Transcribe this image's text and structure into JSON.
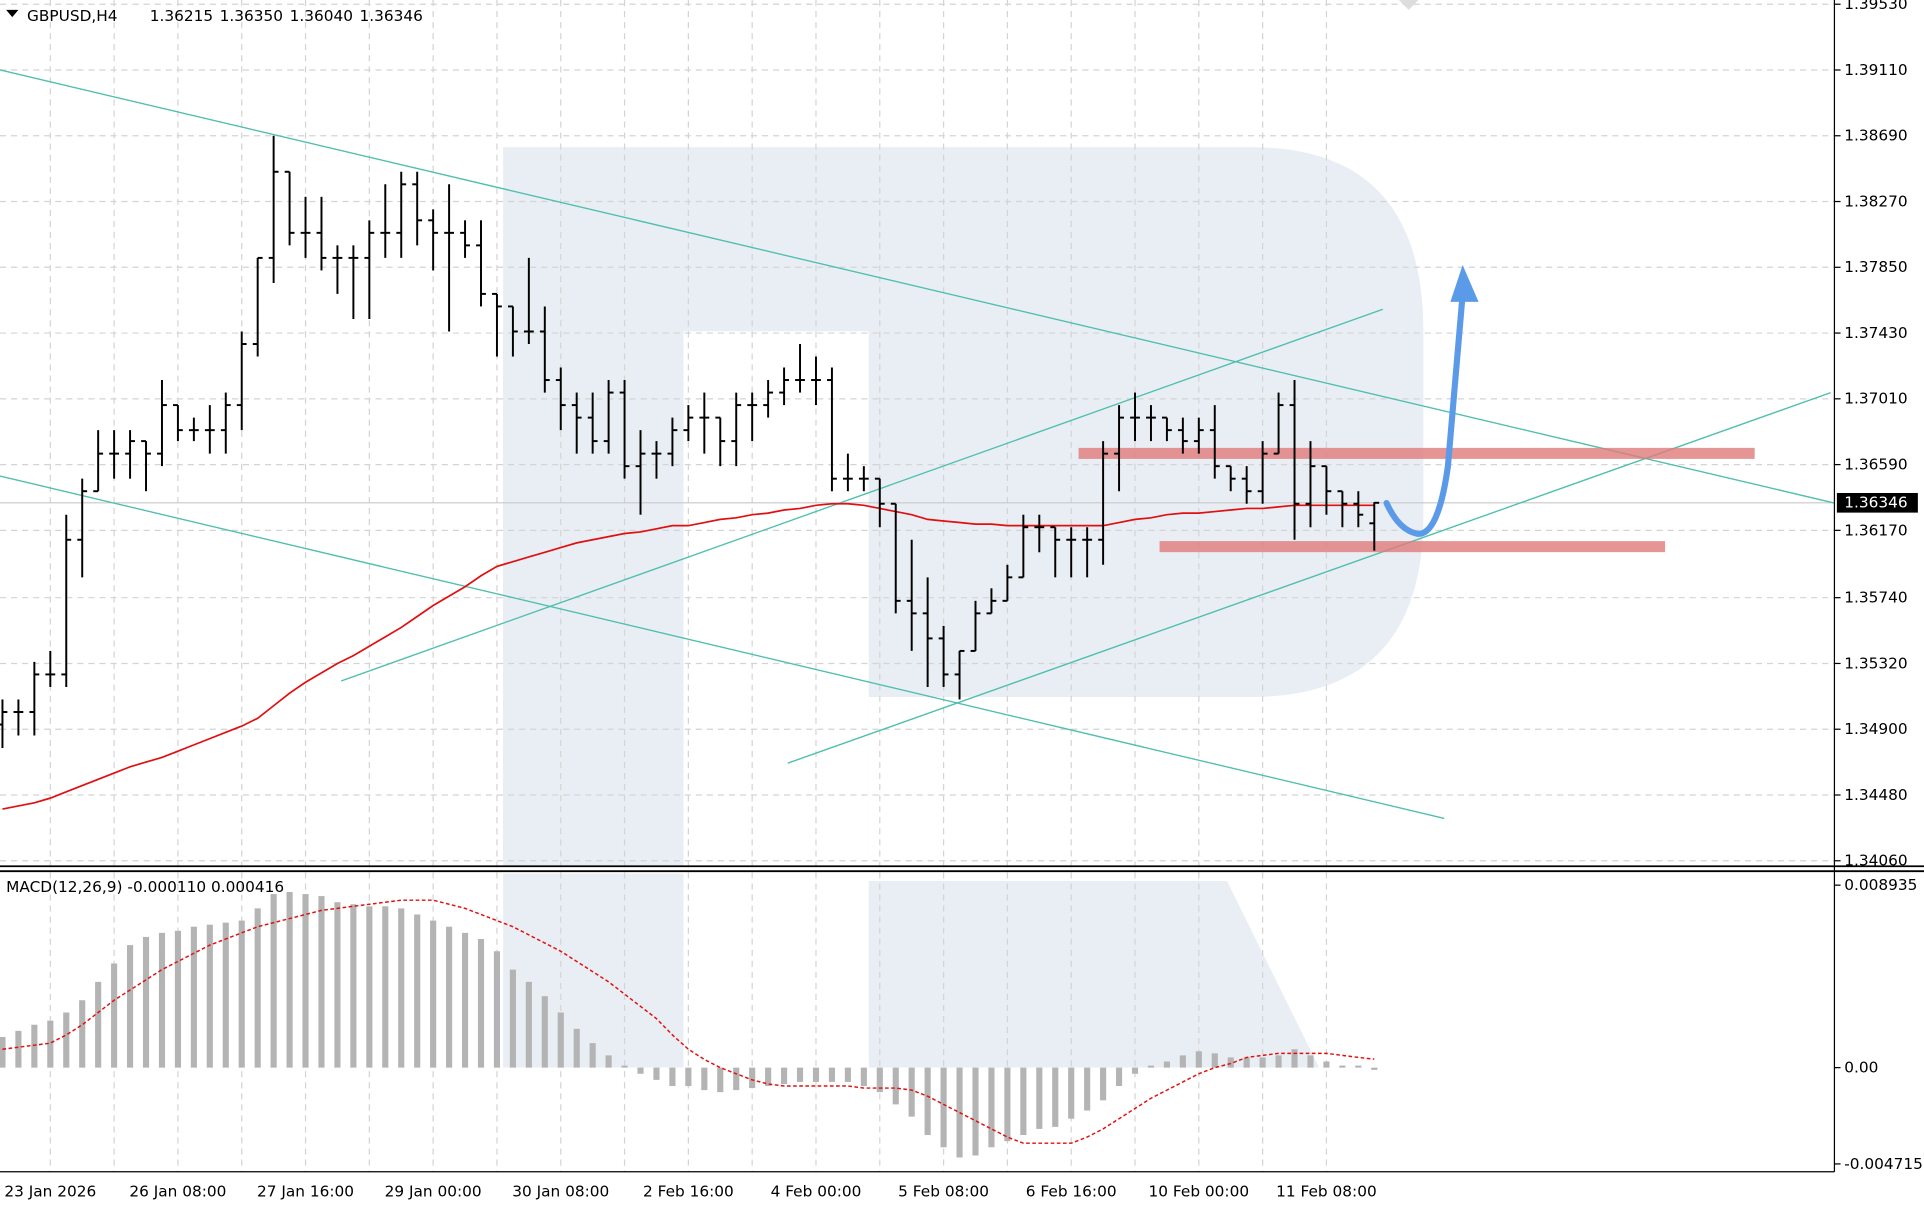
{
  "chart_data": [
    {
      "type": "ohlc",
      "header": {
        "symbol": "GBPUSD,H4",
        "ohlc": [
          "1.36215",
          "1.36350",
          "1.36040",
          "1.36346"
        ]
      },
      "categories": [
        null,
        null,
        null,
        "23 Jan 2026",
        null,
        null,
        null,
        null,
        null,
        null,
        null,
        "26 Jan 08:00",
        null,
        null,
        null,
        null,
        null,
        null,
        null,
        "27 Jan 16:00",
        null,
        null,
        null,
        null,
        null,
        null,
        null,
        "29 Jan 00:00",
        null,
        null,
        null,
        null,
        null,
        null,
        null,
        "30 Jan 08:00",
        null,
        null,
        null,
        null,
        null,
        null,
        null,
        "2 Feb 16:00",
        null,
        null,
        null,
        null,
        null,
        null,
        null,
        "4 Feb 00:00",
        null,
        null,
        null,
        null,
        null,
        null,
        null,
        "5 Feb 08:00",
        null,
        null,
        null,
        null,
        null,
        null,
        null,
        "6 Feb 16:00",
        null,
        null,
        null,
        null,
        null,
        null,
        null,
        "10 Feb 00:00",
        null,
        null,
        null,
        null,
        null,
        null,
        null,
        "11 Feb 08:00",
        null,
        null,
        null
      ],
      "open": [
        1.3493,
        1.3501,
        1.3501,
        1.3525,
        1.3525,
        1.3611,
        1.3642,
        1.3666,
        1.3666,
        1.3674,
        1.3666,
        1.3697,
        1.3681,
        1.3681,
        1.3681,
        1.3697,
        1.3736,
        1.3791,
        1.3846,
        1.3807,
        1.3807,
        1.3791,
        1.3791,
        1.3791,
        1.3807,
        1.3807,
        1.3838,
        1.3815,
        1.3807,
        1.3807,
        1.3799,
        1.3768,
        1.376,
        1.3744,
        1.3744,
        1.3713,
        1.3697,
        1.3689,
        1.3674,
        1.3705,
        1.3658,
        1.3666,
        1.3666,
        1.3681,
        1.3689,
        1.3689,
        1.3674,
        1.3697,
        1.3697,
        1.3705,
        1.3713,
        1.3713,
        1.3713,
        1.365,
        1.365,
        1.365,
        1.3634,
        1.3572,
        1.3564,
        1.3548,
        1.3525,
        1.354,
        1.3564,
        1.3572,
        1.3587,
        1.3619,
        1.3619,
        1.3611,
        1.3611,
        1.3611,
        1.3666,
        1.3689,
        1.3689,
        1.3689,
        1.3681,
        1.3674,
        1.3681,
        1.3658,
        1.365,
        1.3642,
        1.3666,
        1.3697,
        1.3634,
        1.3658,
        1.3642,
        1.3634,
        1.36215
      ],
      "high": [
        1.3509,
        1.3509,
        1.3533,
        1.354,
        1.3627,
        1.365,
        1.3681,
        1.3681,
        1.3681,
        1.3674,
        1.3713,
        1.3697,
        1.3689,
        1.3697,
        1.3705,
        1.3744,
        1.3791,
        1.3869,
        1.3846,
        1.383,
        1.383,
        1.3799,
        1.3799,
        1.3815,
        1.3838,
        1.3846,
        1.3846,
        1.3822,
        1.3838,
        1.3815,
        1.3815,
        1.3768,
        1.376,
        1.3791,
        1.376,
        1.3721,
        1.3705,
        1.3705,
        1.3713,
        1.3713,
        1.3681,
        1.3674,
        1.3689,
        1.3697,
        1.3705,
        1.3689,
        1.3705,
        1.3705,
        1.3713,
        1.3721,
        1.3736,
        1.3728,
        1.3721,
        1.3666,
        1.3658,
        1.365,
        1.3634,
        1.3611,
        1.3587,
        1.3556,
        1.354,
        1.3572,
        1.358,
        1.3595,
        1.3627,
        1.3627,
        1.3619,
        1.3619,
        1.3619,
        1.3674,
        1.3697,
        1.3705,
        1.3697,
        1.3689,
        1.3689,
        1.3689,
        1.3697,
        1.3658,
        1.3658,
        1.3674,
        1.3705,
        1.3713,
        1.3674,
        1.3658,
        1.3642,
        1.3642,
        1.3635
      ],
      "low": [
        1.3478,
        1.3486,
        1.3486,
        1.3517,
        1.3517,
        1.3587,
        1.3642,
        1.365,
        1.365,
        1.3642,
        1.3658,
        1.3674,
        1.3674,
        1.3666,
        1.3666,
        1.3681,
        1.3728,
        1.3775,
        1.3799,
        1.3791,
        1.3783,
        1.3768,
        1.3752,
        1.3752,
        1.3791,
        1.3791,
        1.3799,
        1.3783,
        1.3744,
        1.3791,
        1.376,
        1.3728,
        1.3728,
        1.3736,
        1.3705,
        1.3681,
        1.3666,
        1.3666,
        1.3666,
        1.365,
        1.3627,
        1.365,
        1.3658,
        1.3674,
        1.3666,
        1.3658,
        1.3658,
        1.3674,
        1.3689,
        1.3697,
        1.3705,
        1.3697,
        1.3642,
        1.3642,
        1.3642,
        1.3619,
        1.3564,
        1.354,
        1.3517,
        1.3517,
        1.3509,
        1.354,
        1.3564,
        1.3572,
        1.3587,
        1.3603,
        1.3587,
        1.3587,
        1.3587,
        1.3595,
        1.3642,
        1.3674,
        1.3674,
        1.3674,
        1.3666,
        1.3666,
        1.365,
        1.3642,
        1.3634,
        1.3634,
        1.3666,
        1.3611,
        1.3619,
        1.3627,
        1.3619,
        1.3619,
        1.3604
      ],
      "close": [
        1.3501,
        1.3501,
        1.3525,
        1.3525,
        1.3611,
        1.3642,
        1.3666,
        1.3666,
        1.3674,
        1.3666,
        1.3697,
        1.3681,
        1.3681,
        1.3681,
        1.3697,
        1.3736,
        1.3791,
        1.3846,
        1.3807,
        1.3807,
        1.3791,
        1.3791,
        1.3791,
        1.3807,
        1.3807,
        1.3838,
        1.3815,
        1.3807,
        1.3807,
        1.3799,
        1.3768,
        1.376,
        1.3744,
        1.3744,
        1.3713,
        1.3697,
        1.3689,
        1.3674,
        1.3705,
        1.3658,
        1.3666,
        1.3666,
        1.3681,
        1.3689,
        1.3689,
        1.3674,
        1.3697,
        1.3697,
        1.3705,
        1.3713,
        1.3713,
        1.3713,
        1.365,
        1.365,
        1.365,
        1.3634,
        1.3572,
        1.3564,
        1.3548,
        1.3525,
        1.354,
        1.3564,
        1.3572,
        1.3587,
        1.3619,
        1.3619,
        1.3611,
        1.3611,
        1.3611,
        1.3666,
        1.3689,
        1.3689,
        1.3689,
        1.3681,
        1.3674,
        1.3681,
        1.3658,
        1.365,
        1.3642,
        1.3666,
        1.3697,
        1.3634,
        1.3658,
        1.3642,
        1.3634,
        1.3627,
        1.36346
      ],
      "bar_color": "#000000",
      "ma": {
        "color": "#e01010",
        "values": [
          1.3439,
          1.3441,
          1.3443,
          1.3446,
          1.345,
          1.3454,
          1.3458,
          1.3462,
          1.3466,
          1.3469,
          1.3472,
          1.3476,
          1.348,
          1.3484,
          1.3488,
          1.3492,
          1.3497,
          1.3505,
          1.3513,
          1.352,
          1.3526,
          1.3532,
          1.3537,
          1.3543,
          1.3549,
          1.3555,
          1.3562,
          1.3569,
          1.3575,
          1.3581,
          1.3588,
          1.3594,
          1.3597,
          1.36,
          1.3603,
          1.3606,
          1.3609,
          1.3611,
          1.3613,
          1.3615,
          1.3616,
          1.3618,
          1.362,
          1.362,
          1.3622,
          1.3624,
          1.3625,
          1.3627,
          1.3628,
          1.363,
          1.3631,
          1.3633,
          1.3634,
          1.3634,
          1.3633,
          1.3631,
          1.3629,
          1.3627,
          1.3624,
          1.3623,
          1.3622,
          1.3621,
          1.3621,
          1.362,
          1.362,
          1.362,
          1.362,
          1.362,
          1.362,
          1.362,
          1.3622,
          1.3624,
          1.3625,
          1.3627,
          1.3628,
          1.3628,
          1.3629,
          1.363,
          1.3631,
          1.3631,
          1.3632,
          1.3633,
          1.3633,
          1.3633,
          1.3633,
          1.3633,
          1.3633
        ]
      },
      "last_price": {
        "value": 1.36346,
        "label": "1.36346"
      },
      "ylim": [
        1.34017,
        1.39557
      ],
      "yticks": [
        {
          "value": 1.3953,
          "label": "1.39530"
        },
        {
          "value": 1.3911,
          "label": "1.39110"
        },
        {
          "value": 1.3869,
          "label": "1.38690"
        },
        {
          "value": 1.3827,
          "label": "1.38270"
        },
        {
          "value": 1.3785,
          "label": "1.37850"
        },
        {
          "value": 1.3743,
          "label": "1.37430"
        },
        {
          "value": 1.3701,
          "label": "1.37010"
        },
        {
          "value": 1.3659,
          "label": "1.36590"
        },
        {
          "value": 1.3617,
          "label": "1.36170"
        },
        {
          "value": 1.3574,
          "label": "1.35740"
        },
        {
          "value": 1.3532,
          "label": "1.35320"
        },
        {
          "value": 1.349,
          "label": "1.34900"
        },
        {
          "value": 1.3448,
          "label": "1.34480"
        },
        {
          "value": 1.3406,
          "label": "1.34060"
        }
      ],
      "grid": true
    },
    {
      "type": "macd",
      "header": "MACD(12,26,9) -0.000110 0.000416",
      "histogram": {
        "color": "#b4b4b4",
        "values": [
          0.0015,
          0.0018,
          0.0021,
          0.0023,
          0.0027,
          0.0033,
          0.0042,
          0.0051,
          0.006,
          0.0064,
          0.0066,
          0.0067,
          0.0069,
          0.007,
          0.0071,
          0.0072,
          0.0078,
          0.0085,
          0.0086,
          0.0085,
          0.0084,
          0.0081,
          0.008,
          0.0079,
          0.0079,
          0.0078,
          0.0075,
          0.0072,
          0.0069,
          0.0066,
          0.0063,
          0.0057,
          0.0048,
          0.0042,
          0.0035,
          0.0027,
          0.0019,
          0.0012,
          0.0006,
          0.0001,
          -0.0003,
          -0.0006,
          -0.0009,
          -0.0009,
          -0.0011,
          -0.0012,
          -0.0011,
          -0.001,
          -0.0009,
          -0.0008,
          -0.0007,
          -0.0007,
          -0.0007,
          -0.0007,
          -0.0009,
          -0.0012,
          -0.0018,
          -0.0024,
          -0.0033,
          -0.0039,
          -0.0044,
          -0.0043,
          -0.0039,
          -0.0036,
          -0.0033,
          -0.003,
          -0.0029,
          -0.0025,
          -0.0021,
          -0.0016,
          -0.0009,
          -0.0003,
          0.0001,
          0.0003,
          0.0006,
          0.0008,
          0.0007,
          0.0005,
          0.0005,
          0.0005,
          0.0006,
          0.0009,
          0.0006,
          0.0003,
          0.0001,
          0.0001,
          -0.00011
        ]
      },
      "signal": {
        "color": "#e01010",
        "values": [
          0.0009,
          0.001,
          0.0011,
          0.0012,
          0.0016,
          0.0021,
          0.0027,
          0.0033,
          0.0038,
          0.0043,
          0.0048,
          0.0052,
          0.0056,
          0.006,
          0.0063,
          0.0066,
          0.0069,
          0.0071,
          0.0073,
          0.0075,
          0.0077,
          0.0078,
          0.0079,
          0.008,
          0.0081,
          0.0082,
          0.0082,
          0.0082,
          0.008,
          0.0078,
          0.0075,
          0.0072,
          0.0069,
          0.0065,
          0.0061,
          0.0057,
          0.0052,
          0.0047,
          0.0042,
          0.0036,
          0.003,
          0.0024,
          0.0016,
          0.0009,
          0.0004,
          0,
          -0.0003,
          -0.0006,
          -0.0008,
          -0.0009,
          -0.0009,
          -0.0009,
          -0.0009,
          -0.0009,
          -0.001,
          -0.001,
          -0.001,
          -0.0011,
          -0.0014,
          -0.0018,
          -0.0022,
          -0.0026,
          -0.003,
          -0.0034,
          -0.0037,
          -0.0037,
          -0.0037,
          -0.0037,
          -0.0034,
          -0.003,
          -0.0025,
          -0.002,
          -0.0015,
          -0.0011,
          -0.0007,
          -0.0003,
          0,
          0.0002,
          0.0005,
          0.0006,
          0.0007,
          0.0007,
          0.0007,
          0.0007,
          0.0006,
          0.0005,
          0.000416
        ]
      },
      "ylim": [
        -0.0051,
        0.0095
      ],
      "yticks": [
        0.008935,
        {
          "value": 0,
          "label": "0.00"
        },
        -0.004715
      ]
    }
  ]
}
